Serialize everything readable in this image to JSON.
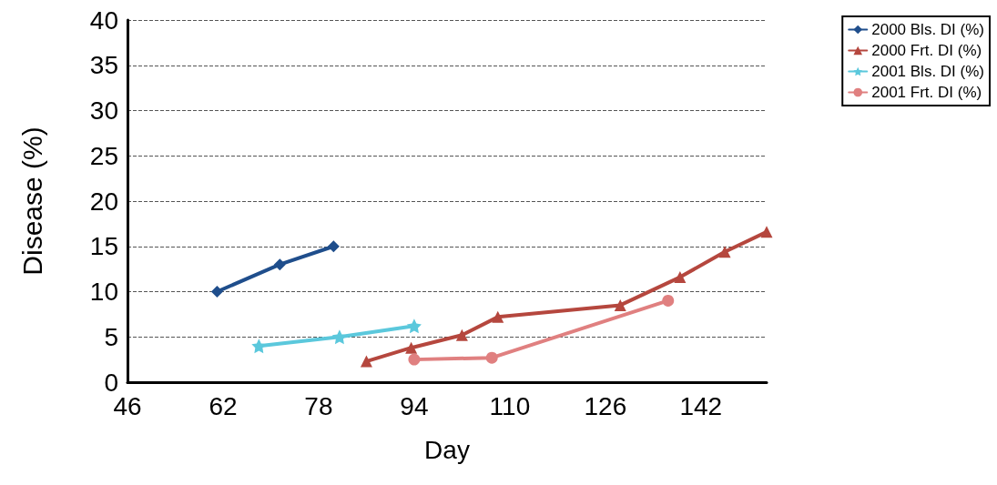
{
  "chart_data": {
    "type": "line",
    "xlabel": "Day",
    "ylabel": "Disease (%)",
    "xlim": [
      46,
      153
    ],
    "xticks": [
      46,
      62,
      78,
      94,
      110,
      126,
      142
    ],
    "ylim": [
      0,
      40
    ],
    "yticks": [
      0,
      5,
      10,
      15,
      20,
      25,
      30,
      35,
      40
    ],
    "grid": "y",
    "legend": "top right",
    "line_style": "solid",
    "series": [
      {
        "name": "2000 Bls. DI (%)",
        "color": "#1f4e8c",
        "marker": "diamond",
        "x": [
          61,
          71.5,
          80.5
        ],
        "values": [
          10,
          13,
          15
        ]
      },
      {
        "name": "2000 Frt. DI (%)",
        "color": "#b5473e",
        "marker": "triangle",
        "x": [
          86,
          93.5,
          102,
          108,
          128.5,
          138.5,
          146,
          153
        ],
        "values": [
          2.3,
          3.8,
          5.2,
          7.2,
          8.5,
          11.6,
          14.4,
          16.6
        ]
      },
      {
        "name": "2001 Bls. DI (%)",
        "color": "#5bc8dc",
        "marker": "star",
        "x": [
          68,
          81.5,
          94
        ],
        "values": [
          4,
          5,
          6.2
        ]
      },
      {
        "name": "2001 Frt. DI (%)",
        "color": "#e08080",
        "marker": "circle",
        "x": [
          94,
          107,
          136.5
        ],
        "values": [
          2.5,
          2.7,
          9
        ]
      }
    ]
  }
}
